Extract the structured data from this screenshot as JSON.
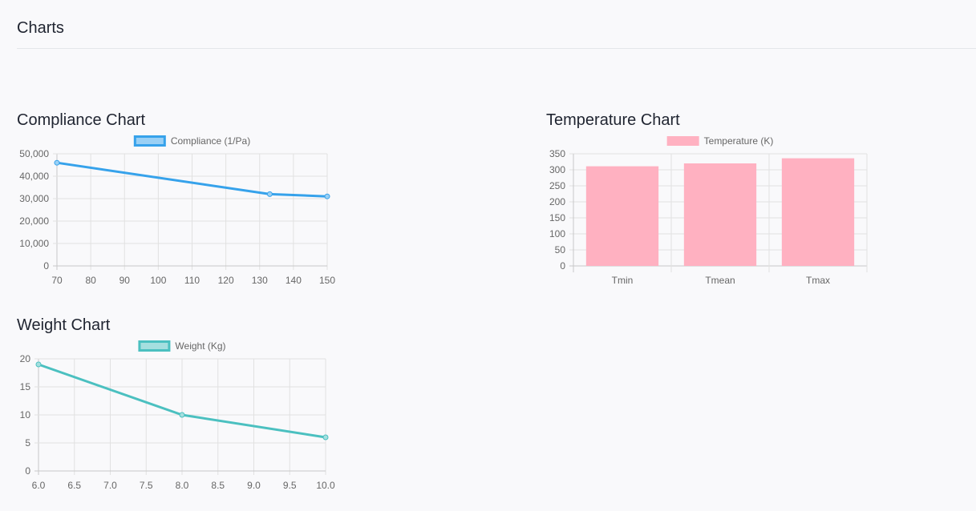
{
  "page": {
    "title": "Charts"
  },
  "chart_data": [
    {
      "id": "compliance",
      "type": "line",
      "title": "Compliance Chart",
      "series": [
        {
          "name": "Compliance (1/Pa)",
          "x": [
            70,
            133,
            150
          ],
          "values": [
            46000,
            32000,
            31000
          ],
          "color": "#36a2eb",
          "fill": "#9ad0f5"
        }
      ],
      "xlim": [
        70,
        150
      ],
      "x_ticks": [
        70,
        80,
        90,
        100,
        110,
        120,
        130,
        140,
        150
      ],
      "ylim": [
        0,
        50000
      ],
      "y_ticks": [
        0,
        10000,
        20000,
        30000,
        40000,
        50000
      ],
      "y_tick_labels": [
        "0",
        "10,000",
        "20,000",
        "30,000",
        "40,000",
        "50,000"
      ],
      "grid": true,
      "legend": "top-center"
    },
    {
      "id": "temperature",
      "type": "bar",
      "title": "Temperature Chart",
      "categories": [
        "Tmin",
        "Tmean",
        "Tmax"
      ],
      "series": [
        {
          "name": "Temperature (K)",
          "values": [
            311,
            320,
            336
          ],
          "color": "#ffb1c1"
        }
      ],
      "ylim": [
        0,
        350
      ],
      "y_ticks": [
        0,
        50,
        100,
        150,
        200,
        250,
        300,
        350
      ],
      "grid": true,
      "legend": "top-center"
    },
    {
      "id": "weight",
      "type": "line",
      "title": "Weight Chart",
      "series": [
        {
          "name": "Weight (Kg)",
          "x": [
            6,
            8,
            10
          ],
          "values": [
            19,
            10,
            6
          ],
          "color": "#4bc0c0",
          "fill": "#a5dfdf"
        }
      ],
      "xlim": [
        6,
        10
      ],
      "x_ticks": [
        6,
        6.5,
        7,
        7.5,
        8,
        8.5,
        9,
        9.5,
        10
      ],
      "x_tick_labels": [
        "6.0",
        "6.5",
        "7.0",
        "7.5",
        "8.0",
        "8.5",
        "9.0",
        "9.5",
        "10.0"
      ],
      "ylim": [
        0,
        20
      ],
      "y_ticks": [
        0,
        5,
        10,
        15,
        20
      ],
      "grid": true,
      "legend": "top-center"
    }
  ]
}
